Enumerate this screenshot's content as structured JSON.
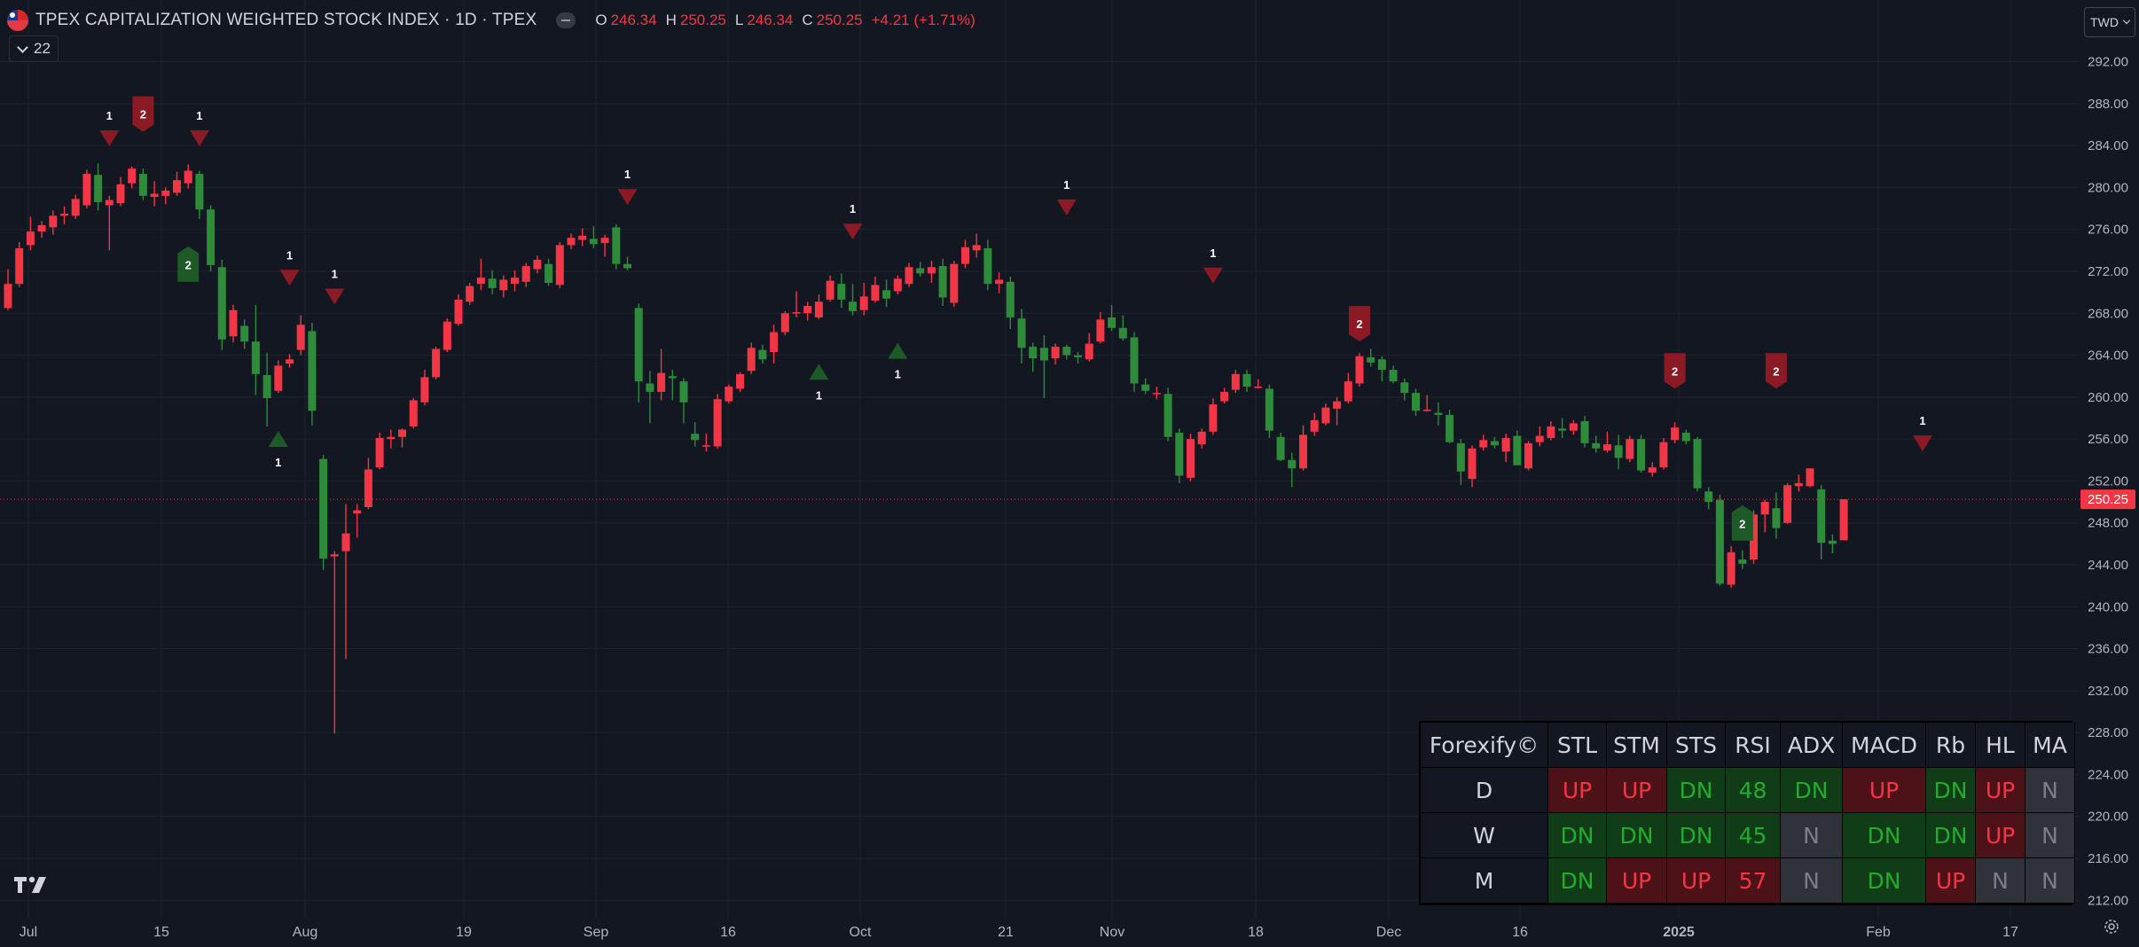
{
  "header": {
    "title": "TPEX CAPITALIZATION WEIGHTED STOCK INDEX · 1D · TPEX",
    "ohlc": [
      {
        "key": "O",
        "value": "246.34"
      },
      {
        "key": "H",
        "value": "250.25"
      },
      {
        "key": "L",
        "value": "246.34"
      },
      {
        "key": "C",
        "value": "250.25"
      }
    ],
    "change": "+4.21 (+1.71%)",
    "indicator_count": "22",
    "currency": "TWD"
  },
  "colors": {
    "background": "#131722",
    "grid": "#1f2330",
    "up": "#f23645",
    "down": "#2e8b3a",
    "marker_red": "#8b1a25",
    "marker_green": "#1e5a28",
    "price_label": "#f23645"
  },
  "chart_data": {
    "type": "candlestick",
    "y_ticks": [
      "292.00",
      "288.00",
      "284.00",
      "280.00",
      "276.00",
      "272.00",
      "268.00",
      "264.00",
      "260.00",
      "256.00",
      "252.00",
      "248.00",
      "244.00",
      "240.00",
      "236.00",
      "232.00",
      "228.00",
      "224.00",
      "220.00",
      "216.00",
      "212.00"
    ],
    "ylim": [
      210.5,
      294.5
    ],
    "x_labels": [
      "Jul",
      "15",
      "Aug",
      "19",
      "Sep",
      "16",
      "Oct",
      "21",
      "Nov",
      "18",
      "Dec",
      "16",
      "2025",
      "Feb",
      "17"
    ],
    "last_price": "250.25",
    "candles": [
      [
        268.5,
        272.2,
        268.3,
        270.8
      ],
      [
        270.8,
        274.8,
        270.5,
        274.2
      ],
      [
        274.5,
        277.2,
        274.0,
        275.8
      ],
      [
        275.8,
        276.8,
        275.2,
        276.4
      ],
      [
        276.2,
        277.8,
        275.5,
        277.3
      ],
      [
        277.3,
        278.2,
        276.5,
        277.5
      ],
      [
        277.3,
        279.3,
        277.0,
        278.9
      ],
      [
        278.3,
        281.7,
        278.0,
        281.3
      ],
      [
        281.2,
        282.3,
        277.8,
        278.6
      ],
      [
        278.3,
        279.2,
        274.0,
        278.8
      ],
      [
        278.5,
        281.0,
        278.2,
        280.3
      ],
      [
        280.4,
        282.0,
        279.9,
        281.8
      ],
      [
        281.3,
        281.8,
        278.8,
        279.2
      ],
      [
        279.1,
        280.6,
        278.2,
        279.4
      ],
      [
        279.2,
        280.0,
        278.4,
        279.7
      ],
      [
        279.5,
        281.5,
        279.2,
        280.7
      ],
      [
        280.4,
        282.2,
        279.9,
        281.6
      ],
      [
        281.3,
        281.6,
        277.0,
        277.9
      ],
      [
        277.9,
        278.3,
        272.0,
        272.6
      ],
      [
        272.4,
        273.1,
        264.5,
        265.5
      ],
      [
        265.8,
        268.8,
        265.2,
        268.3
      ],
      [
        266.8,
        267.4,
        264.6,
        265.3
      ],
      [
        265.3,
        268.8,
        260.2,
        262.2
      ],
      [
        262.1,
        264.2,
        257.2,
        259.9
      ],
      [
        260.6,
        263.5,
        260.4,
        263.0
      ],
      [
        263.2,
        264.1,
        262.8,
        263.6
      ],
      [
        264.5,
        267.8,
        264.0,
        266.9
      ],
      [
        266.3,
        267.1,
        257.3,
        258.7
      ],
      [
        254.1,
        254.5,
        243.5,
        244.6
      ],
      [
        244.8,
        245.3,
        227.9,
        245.0
      ],
      [
        245.3,
        249.8,
        235.0,
        247.0
      ],
      [
        248.9,
        249.8,
        246.6,
        249.2
      ],
      [
        249.5,
        254.2,
        249.3,
        253.1
      ],
      [
        253.3,
        256.6,
        253.1,
        256.1
      ],
      [
        256.0,
        256.9,
        255.1,
        256.2
      ],
      [
        256.2,
        257.0,
        255.2,
        256.9
      ],
      [
        257.2,
        259.9,
        257.0,
        259.7
      ],
      [
        259.5,
        262.6,
        259.2,
        261.9
      ],
      [
        261.9,
        264.8,
        261.7,
        264.6
      ],
      [
        264.5,
        267.5,
        264.3,
        267.2
      ],
      [
        267.0,
        269.8,
        266.8,
        269.3
      ],
      [
        269.1,
        270.9,
        268.8,
        270.6
      ],
      [
        270.8,
        273.2,
        270.2,
        271.4
      ],
      [
        271.3,
        272.1,
        269.8,
        270.4
      ],
      [
        270.2,
        271.6,
        269.5,
        271.2
      ],
      [
        270.8,
        272.1,
        270.1,
        271.4
      ],
      [
        271.0,
        272.8,
        270.5,
        272.5
      ],
      [
        272.2,
        273.5,
        271.8,
        273.1
      ],
      [
        272.7,
        273.2,
        270.6,
        270.9
      ],
      [
        270.7,
        274.8,
        270.4,
        274.5
      ],
      [
        274.5,
        275.6,
        274.1,
        275.2
      ],
      [
        275.0,
        276.1,
        274.4,
        275.4
      ],
      [
        275.1,
        276.3,
        274.2,
        274.6
      ],
      [
        274.7,
        275.5,
        273.4,
        275.2
      ],
      [
        276.2,
        276.5,
        272.2,
        272.7
      ],
      [
        272.7,
        273.4,
        272.1,
        272.3
      ],
      [
        268.5,
        268.9,
        259.5,
        261.5
      ],
      [
        261.3,
        262.5,
        257.5,
        260.5
      ],
      [
        260.5,
        264.6,
        259.7,
        262.3
      ],
      [
        262.0,
        262.6,
        259.7,
        261.8
      ],
      [
        261.5,
        261.8,
        257.5,
        259.5
      ],
      [
        256.5,
        257.6,
        255.3,
        255.9
      ],
      [
        255.4,
        256.5,
        254.8,
        255.4
      ],
      [
        255.3,
        260.3,
        255.1,
        259.8
      ],
      [
        259.6,
        261.2,
        259.4,
        261.0
      ],
      [
        260.8,
        262.4,
        260.5,
        262.2
      ],
      [
        262.5,
        265.2,
        262.2,
        264.7
      ],
      [
        264.5,
        265.0,
        263.2,
        263.6
      ],
      [
        264.3,
        266.9,
        263.2,
        266.2
      ],
      [
        266.2,
        268.2,
        265.9,
        268.0
      ],
      [
        268.0,
        270.1,
        267.6,
        268.1
      ],
      [
        268.0,
        269.1,
        267.3,
        268.7
      ],
      [
        267.6,
        269.8,
        267.4,
        269.1
      ],
      [
        269.3,
        271.6,
        269.1,
        271.1
      ],
      [
        270.8,
        271.8,
        268.5,
        269.3
      ],
      [
        269.1,
        270.8,
        267.8,
        268.2
      ],
      [
        268.3,
        270.9,
        267.8,
        269.6
      ],
      [
        269.2,
        271.5,
        269.0,
        270.7
      ],
      [
        270.2,
        271.2,
        268.6,
        269.4
      ],
      [
        270.1,
        271.6,
        269.8,
        271.3
      ],
      [
        270.8,
        272.8,
        270.5,
        272.4
      ],
      [
        272.3,
        272.9,
        271.5,
        271.8
      ],
      [
        271.8,
        273.0,
        270.9,
        272.4
      ],
      [
        272.5,
        273.2,
        268.7,
        269.5
      ],
      [
        269.0,
        273.0,
        268.6,
        272.7
      ],
      [
        272.7,
        275.0,
        272.3,
        274.3
      ],
      [
        274.0,
        275.6,
        273.3,
        274.5
      ],
      [
        274.2,
        275.0,
        270.2,
        270.8
      ],
      [
        270.8,
        271.9,
        269.9,
        271.2
      ],
      [
        271.0,
        271.5,
        266.5,
        267.6
      ],
      [
        267.5,
        268.4,
        263.2,
        264.7
      ],
      [
        264.8,
        265.2,
        262.4,
        263.7
      ],
      [
        264.7,
        265.9,
        259.9,
        263.5
      ],
      [
        263.7,
        265.1,
        263.1,
        264.8
      ],
      [
        264.8,
        265.0,
        263.6,
        264.0
      ],
      [
        264.0,
        264.3,
        263.2,
        263.8
      ],
      [
        263.6,
        266.1,
        263.4,
        265.1
      ],
      [
        265.3,
        268.1,
        265.1,
        267.4
      ],
      [
        267.6,
        268.8,
        266.3,
        266.6
      ],
      [
        266.6,
        267.8,
        265.4,
        265.6
      ],
      [
        265.7,
        266.2,
        260.5,
        261.3
      ],
      [
        261.2,
        261.8,
        260.3,
        260.6
      ],
      [
        260.4,
        261.0,
        259.8,
        260.4
      ],
      [
        260.3,
        260.9,
        255.8,
        256.2
      ],
      [
        256.6,
        257.0,
        251.8,
        252.5
      ],
      [
        252.3,
        256.5,
        252.0,
        256.0
      ],
      [
        255.5,
        257.0,
        255.1,
        256.7
      ],
      [
        256.7,
        259.9,
        256.4,
        259.3
      ],
      [
        259.6,
        260.9,
        259.4,
        260.5
      ],
      [
        260.7,
        262.6,
        260.4,
        262.2
      ],
      [
        262.2,
        262.6,
        260.5,
        261.0
      ],
      [
        261.0,
        261.7,
        260.8,
        261.0
      ],
      [
        260.8,
        261.2,
        256.1,
        256.8
      ],
      [
        256.2,
        256.6,
        253.9,
        254.0
      ],
      [
        254.0,
        254.7,
        251.4,
        253.2
      ],
      [
        253.2,
        257.3,
        253.0,
        256.4
      ],
      [
        256.7,
        258.5,
        256.3,
        257.8
      ],
      [
        257.5,
        259.4,
        257.3,
        259.0
      ],
      [
        258.9,
        260.0,
        257.3,
        259.6
      ],
      [
        259.6,
        262.3,
        259.4,
        261.5
      ],
      [
        261.3,
        264.2,
        261.0,
        263.9
      ],
      [
        263.8,
        264.6,
        262.9,
        263.3
      ],
      [
        263.6,
        263.9,
        261.5,
        262.6
      ],
      [
        262.6,
        263.0,
        261.3,
        261.5
      ],
      [
        261.4,
        261.8,
        259.7,
        260.4
      ],
      [
        260.4,
        260.8,
        258.2,
        258.7
      ],
      [
        258.7,
        260.2,
        258.6,
        258.8
      ],
      [
        258.5,
        259.5,
        257.3,
        258.3
      ],
      [
        258.3,
        258.8,
        255.6,
        255.7
      ],
      [
        255.6,
        256.0,
        251.6,
        252.9
      ],
      [
        252.2,
        255.4,
        251.4,
        255.1
      ],
      [
        255.2,
        256.4,
        254.9,
        255.9
      ],
      [
        255.8,
        256.2,
        255.1,
        255.4
      ],
      [
        254.8,
        256.5,
        253.8,
        256.1
      ],
      [
        256.3,
        256.8,
        254.1,
        253.5
      ],
      [
        253.2,
        255.8,
        253.0,
        255.6
      ],
      [
        255.7,
        257.2,
        255.3,
        256.3
      ],
      [
        256.1,
        257.7,
        255.9,
        257.2
      ],
      [
        257.0,
        258.0,
        256.1,
        256.8
      ],
      [
        256.8,
        257.8,
        256.4,
        257.5
      ],
      [
        257.7,
        258.2,
        255.2,
        255.6
      ],
      [
        255.6,
        256.3,
        254.7,
        255.1
      ],
      [
        254.9,
        256.7,
        254.7,
        255.5
      ],
      [
        255.4,
        256.4,
        253.1,
        254.2
      ],
      [
        254.1,
        256.3,
        253.8,
        256.0
      ],
      [
        256.0,
        256.4,
        252.8,
        253.0
      ],
      [
        252.8,
        253.8,
        252.4,
        253.3
      ],
      [
        253.3,
        256.1,
        253.1,
        255.7
      ],
      [
        255.9,
        257.6,
        255.6,
        257.1
      ],
      [
        256.6,
        256.9,
        255.5,
        255.8
      ],
      [
        256.0,
        256.2,
        251.0,
        251.3
      ],
      [
        251.0,
        251.4,
        249.3,
        250.0
      ],
      [
        250.2,
        250.7,
        242.0,
        242.2
      ],
      [
        242.1,
        245.8,
        241.8,
        245.2
      ],
      [
        244.5,
        245.4,
        243.6,
        244.1
      ],
      [
        244.5,
        249.2,
        244.1,
        248.8
      ],
      [
        248.8,
        250.2,
        247.1,
        250.0
      ],
      [
        249.4,
        250.9,
        246.5,
        247.5
      ],
      [
        248.0,
        251.8,
        247.9,
        251.6
      ],
      [
        251.5,
        252.6,
        251.0,
        251.8
      ],
      [
        251.5,
        253.2,
        251.4,
        253.2
      ],
      [
        251.2,
        251.6,
        244.5,
        246.1
      ],
      [
        246.3,
        246.9,
        245.1,
        246.0
      ],
      [
        246.34,
        250.25,
        246.34,
        250.25
      ]
    ],
    "markers": [
      {
        "bar": 9,
        "shape": "triangle-down",
        "color": "red",
        "label": "1",
        "y": 284.6
      },
      {
        "bar": 12,
        "shape": "badge-down",
        "color": "red",
        "label": "2",
        "y": 287.0
      },
      {
        "bar": 17,
        "shape": "triangle-down",
        "color": "red",
        "label": "1",
        "y": 284.6
      },
      {
        "bar": 16,
        "shape": "badge-up",
        "color": "green",
        "label": "2",
        "y": 272.7
      },
      {
        "bar": 25,
        "shape": "triangle-down",
        "color": "red",
        "label": "1",
        "y": 271.3
      },
      {
        "bar": 29,
        "shape": "triangle-down",
        "color": "red",
        "label": "1",
        "y": 269.5
      },
      {
        "bar": 24,
        "shape": "triangle-up",
        "color": "green",
        "label": "1",
        "y": 256.1
      },
      {
        "bar": 55,
        "shape": "triangle-down",
        "color": "red",
        "label": "1",
        "y": 279.0
      },
      {
        "bar": 75,
        "shape": "triangle-down",
        "color": "red",
        "label": "1",
        "y": 275.7
      },
      {
        "bar": 72,
        "shape": "triangle-up",
        "color": "green",
        "label": "1",
        "y": 262.5
      },
      {
        "bar": 79,
        "shape": "triangle-up",
        "color": "green",
        "label": "1",
        "y": 264.5
      },
      {
        "bar": 94,
        "shape": "triangle-down",
        "color": "red",
        "label": "1",
        "y": 278.0
      },
      {
        "bar": 107,
        "shape": "triangle-down",
        "color": "red",
        "label": "1",
        "y": 271.5
      },
      {
        "bar": 120,
        "shape": "badge-down",
        "color": "red",
        "label": "2",
        "y": 267.0
      },
      {
        "bar": 148,
        "shape": "badge-down",
        "color": "red",
        "label": "2",
        "y": 262.5
      },
      {
        "bar": 157,
        "shape": "badge-down",
        "color": "red",
        "label": "2",
        "y": 262.5
      },
      {
        "bar": 154,
        "shape": "badge-up",
        "color": "green",
        "label": "2",
        "y": 248.0
      },
      {
        "bar": 170,
        "shape": "triangle-down",
        "color": "red",
        "label": "1",
        "y": 255.5
      }
    ]
  },
  "panel": {
    "headers": [
      "Forexify©",
      "STL",
      "STM",
      "STS",
      "RSI",
      "ADX",
      "MACD",
      "Rb",
      "HL",
      "MA"
    ],
    "rows": [
      {
        "label": "D",
        "cells": [
          {
            "t": "UP",
            "s": "up"
          },
          {
            "t": "UP",
            "s": "up"
          },
          {
            "t": "DN",
            "s": "dn"
          },
          {
            "t": "48",
            "s": "dn"
          },
          {
            "t": "DN",
            "s": "dn"
          },
          {
            "t": "UP",
            "s": "up"
          },
          {
            "t": "DN",
            "s": "dn"
          },
          {
            "t": "UP",
            "s": "up"
          },
          {
            "t": "N",
            "s": "n"
          }
        ]
      },
      {
        "label": "W",
        "cells": [
          {
            "t": "DN",
            "s": "dn"
          },
          {
            "t": "DN",
            "s": "dn"
          },
          {
            "t": "DN",
            "s": "dn"
          },
          {
            "t": "45",
            "s": "dn"
          },
          {
            "t": "N",
            "s": "n"
          },
          {
            "t": "DN",
            "s": "dn"
          },
          {
            "t": "DN",
            "s": "dn"
          },
          {
            "t": "UP",
            "s": "up"
          },
          {
            "t": "N",
            "s": "n"
          }
        ]
      },
      {
        "label": "M",
        "cells": [
          {
            "t": "DN",
            "s": "dn"
          },
          {
            "t": "UP",
            "s": "up"
          },
          {
            "t": "UP",
            "s": "up"
          },
          {
            "t": "57",
            "s": "up"
          },
          {
            "t": "N",
            "s": "n"
          },
          {
            "t": "DN",
            "s": "dn"
          },
          {
            "t": "UP",
            "s": "up"
          },
          {
            "t": "N",
            "s": "n"
          },
          {
            "t": "N",
            "s": "n"
          }
        ]
      }
    ]
  }
}
